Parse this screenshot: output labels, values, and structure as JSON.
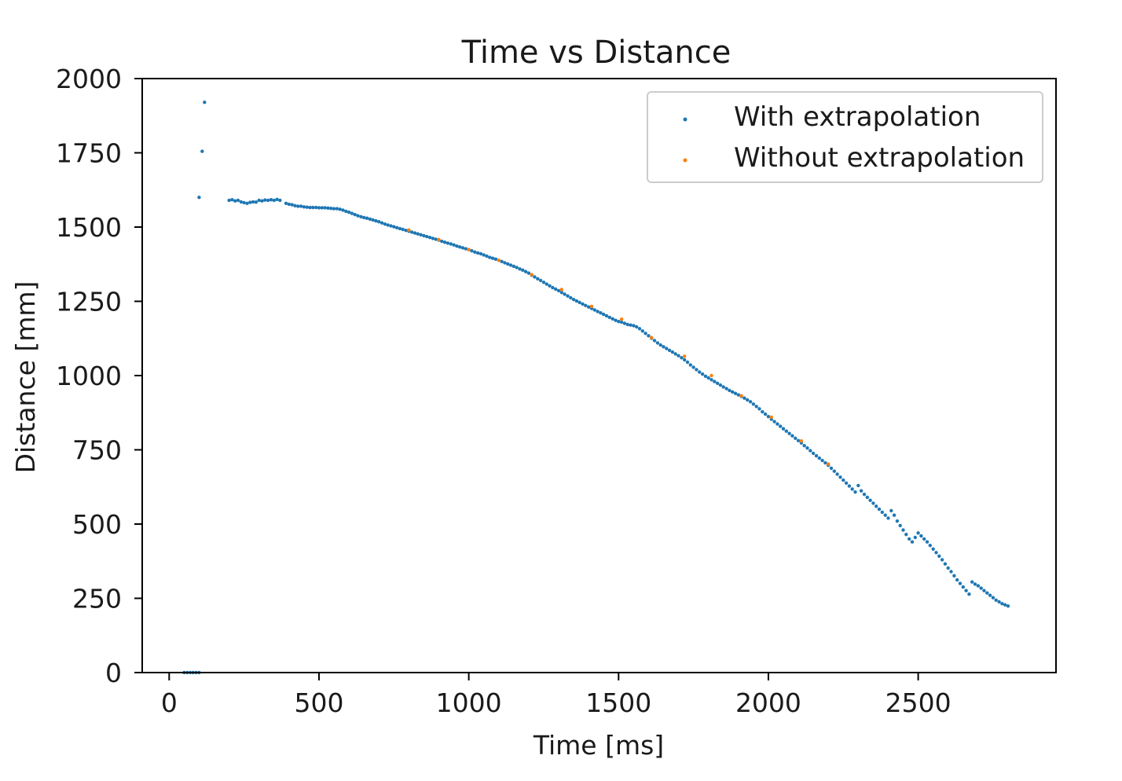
{
  "chart_data": {
    "type": "scatter",
    "title": "Time vs Distance",
    "xlabel": "Time [ms]",
    "ylabel": "Distance [mm]",
    "xlim": [
      -90,
      2960
    ],
    "ylim": [
      0,
      2000
    ],
    "xticks": [
      0,
      500,
      1000,
      1500,
      2000,
      2500
    ],
    "yticks": [
      0,
      250,
      500,
      750,
      1000,
      1250,
      1500,
      1750,
      2000
    ],
    "grid": false,
    "legend_position": "top-right",
    "colors": {
      "with": "#1f77b4",
      "without": "#ff7f0e"
    },
    "series": [
      {
        "name": "With extrapolation",
        "color": "#1f77b4",
        "points": [
          [
            50,
            0
          ],
          [
            60,
            0
          ],
          [
            70,
            0
          ],
          [
            80,
            0
          ],
          [
            90,
            0
          ],
          [
            100,
            0
          ],
          [
            100,
            1600
          ],
          [
            110,
            1755
          ],
          [
            118,
            1920
          ],
          [
            200,
            1590
          ],
          [
            210,
            1592
          ],
          [
            220,
            1588
          ],
          [
            230,
            1590
          ],
          [
            240,
            1585
          ],
          [
            250,
            1582
          ],
          [
            260,
            1580
          ],
          [
            270,
            1583
          ],
          [
            280,
            1585
          ],
          [
            290,
            1584
          ],
          [
            300,
            1590
          ],
          [
            310,
            1588
          ],
          [
            320,
            1591
          ],
          [
            330,
            1590
          ],
          [
            340,
            1592
          ],
          [
            350,
            1590
          ],
          [
            360,
            1593
          ],
          [
            370,
            1590
          ],
          [
            390,
            1580
          ],
          [
            400,
            1577
          ],
          [
            410,
            1575
          ],
          [
            420,
            1572
          ],
          [
            430,
            1570
          ],
          [
            440,
            1570
          ],
          [
            450,
            1568
          ],
          [
            460,
            1567
          ],
          [
            470,
            1566
          ],
          [
            480,
            1566
          ],
          [
            490,
            1566
          ],
          [
            500,
            1565
          ],
          [
            510,
            1565
          ],
          [
            520,
            1565
          ],
          [
            530,
            1564
          ],
          [
            540,
            1563
          ],
          [
            550,
            1562
          ],
          [
            560,
            1562
          ],
          [
            570,
            1560
          ],
          [
            580,
            1557
          ],
          [
            590,
            1553
          ],
          [
            600,
            1550
          ],
          [
            610,
            1546
          ],
          [
            620,
            1542
          ],
          [
            630,
            1538
          ],
          [
            640,
            1535
          ],
          [
            650,
            1532
          ],
          [
            660,
            1530
          ],
          [
            670,
            1527
          ],
          [
            680,
            1524
          ],
          [
            690,
            1521
          ],
          [
            700,
            1518
          ],
          [
            710,
            1514
          ],
          [
            720,
            1510
          ],
          [
            730,
            1507
          ],
          [
            740,
            1504
          ],
          [
            750,
            1501
          ],
          [
            760,
            1498
          ],
          [
            770,
            1495
          ],
          [
            780,
            1492
          ],
          [
            790,
            1489
          ],
          [
            800,
            1486
          ],
          [
            810,
            1483
          ],
          [
            820,
            1480
          ],
          [
            830,
            1477
          ],
          [
            840,
            1474
          ],
          [
            850,
            1471
          ],
          [
            860,
            1468
          ],
          [
            870,
            1465
          ],
          [
            880,
            1462
          ],
          [
            890,
            1459
          ],
          [
            900,
            1456
          ],
          [
            910,
            1452
          ],
          [
            920,
            1449
          ],
          [
            930,
            1446
          ],
          [
            940,
            1443
          ],
          [
            950,
            1440
          ],
          [
            960,
            1436
          ],
          [
            970,
            1433
          ],
          [
            980,
            1430
          ],
          [
            990,
            1427
          ],
          [
            1000,
            1424
          ],
          [
            1010,
            1420
          ],
          [
            1020,
            1416
          ],
          [
            1030,
            1413
          ],
          [
            1040,
            1410
          ],
          [
            1050,
            1406
          ],
          [
            1060,
            1402
          ],
          [
            1070,
            1398
          ],
          [
            1080,
            1395
          ],
          [
            1090,
            1392
          ],
          [
            1100,
            1388
          ],
          [
            1110,
            1384
          ],
          [
            1120,
            1380
          ],
          [
            1130,
            1376
          ],
          [
            1140,
            1372
          ],
          [
            1150,
            1368
          ],
          [
            1160,
            1364
          ],
          [
            1170,
            1359
          ],
          [
            1180,
            1355
          ],
          [
            1190,
            1350
          ],
          [
            1200,
            1345
          ],
          [
            1210,
            1338
          ],
          [
            1220,
            1332
          ],
          [
            1230,
            1326
          ],
          [
            1240,
            1320
          ],
          [
            1250,
            1314
          ],
          [
            1260,
            1308
          ],
          [
            1270,
            1302
          ],
          [
            1280,
            1296
          ],
          [
            1290,
            1291
          ],
          [
            1300,
            1286
          ],
          [
            1310,
            1280
          ],
          [
            1320,
            1274
          ],
          [
            1330,
            1268
          ],
          [
            1340,
            1262
          ],
          [
            1350,
            1256
          ],
          [
            1360,
            1251
          ],
          [
            1370,
            1246
          ],
          [
            1380,
            1241
          ],
          [
            1390,
            1236
          ],
          [
            1400,
            1231
          ],
          [
            1410,
            1226
          ],
          [
            1420,
            1221
          ],
          [
            1430,
            1216
          ],
          [
            1440,
            1211
          ],
          [
            1450,
            1206
          ],
          [
            1460,
            1201
          ],
          [
            1470,
            1196
          ],
          [
            1480,
            1191
          ],
          [
            1490,
            1186
          ],
          [
            1500,
            1182
          ],
          [
            1510,
            1180
          ],
          [
            1520,
            1176
          ],
          [
            1530,
            1172
          ],
          [
            1540,
            1170
          ],
          [
            1550,
            1168
          ],
          [
            1560,
            1164
          ],
          [
            1570,
            1158
          ],
          [
            1580,
            1150
          ],
          [
            1590,
            1142
          ],
          [
            1600,
            1134
          ],
          [
            1610,
            1126
          ],
          [
            1620,
            1118
          ],
          [
            1630,
            1110
          ],
          [
            1640,
            1103
          ],
          [
            1650,
            1097
          ],
          [
            1660,
            1091
          ],
          [
            1670,
            1085
          ],
          [
            1680,
            1079
          ],
          [
            1690,
            1073
          ],
          [
            1700,
            1067
          ],
          [
            1710,
            1060
          ],
          [
            1720,
            1053
          ],
          [
            1730,
            1045
          ],
          [
            1740,
            1036
          ],
          [
            1750,
            1028
          ],
          [
            1760,
            1020
          ],
          [
            1770,
            1012
          ],
          [
            1780,
            1005
          ],
          [
            1790,
            998
          ],
          [
            1800,
            992
          ],
          [
            1810,
            986
          ],
          [
            1820,
            980
          ],
          [
            1830,
            974
          ],
          [
            1840,
            968
          ],
          [
            1850,
            962
          ],
          [
            1860,
            956
          ],
          [
            1870,
            950
          ],
          [
            1880,
            945
          ],
          [
            1890,
            940
          ],
          [
            1900,
            935
          ],
          [
            1910,
            930
          ],
          [
            1920,
            924
          ],
          [
            1930,
            918
          ],
          [
            1940,
            912
          ],
          [
            1950,
            904
          ],
          [
            1960,
            896
          ],
          [
            1970,
            888
          ],
          [
            1980,
            878
          ],
          [
            1990,
            870
          ],
          [
            2000,
            862
          ],
          [
            2010,
            853
          ],
          [
            2020,
            845
          ],
          [
            2030,
            837
          ],
          [
            2040,
            829
          ],
          [
            2050,
            821
          ],
          [
            2060,
            813
          ],
          [
            2070,
            805
          ],
          [
            2080,
            797
          ],
          [
            2090,
            789
          ],
          [
            2100,
            781
          ],
          [
            2110,
            773
          ],
          [
            2120,
            764
          ],
          [
            2130,
            756
          ],
          [
            2140,
            747
          ],
          [
            2150,
            738
          ],
          [
            2160,
            730
          ],
          [
            2170,
            722
          ],
          [
            2180,
            714
          ],
          [
            2190,
            706
          ],
          [
            2200,
            698
          ],
          [
            2210,
            688
          ],
          [
            2220,
            678
          ],
          [
            2230,
            668
          ],
          [
            2240,
            658
          ],
          [
            2250,
            648
          ],
          [
            2260,
            638
          ],
          [
            2270,
            628
          ],
          [
            2280,
            618
          ],
          [
            2290,
            608
          ],
          [
            2300,
            630
          ],
          [
            2310,
            612
          ],
          [
            2320,
            600
          ],
          [
            2330,
            590
          ],
          [
            2340,
            580
          ],
          [
            2350,
            570
          ],
          [
            2360,
            560
          ],
          [
            2370,
            550
          ],
          [
            2380,
            540
          ],
          [
            2390,
            530
          ],
          [
            2400,
            520
          ],
          [
            2410,
            545
          ],
          [
            2420,
            530
          ],
          [
            2430,
            510
          ],
          [
            2440,
            495
          ],
          [
            2450,
            480
          ],
          [
            2460,
            465
          ],
          [
            2470,
            450
          ],
          [
            2480,
            440
          ],
          [
            2490,
            455
          ],
          [
            2500,
            470
          ],
          [
            2510,
            460
          ],
          [
            2520,
            450
          ],
          [
            2530,
            440
          ],
          [
            2540,
            428
          ],
          [
            2550,
            416
          ],
          [
            2560,
            404
          ],
          [
            2570,
            392
          ],
          [
            2580,
            380
          ],
          [
            2590,
            366
          ],
          [
            2600,
            352
          ],
          [
            2610,
            340
          ],
          [
            2620,
            326
          ],
          [
            2630,
            312
          ],
          [
            2640,
            300
          ],
          [
            2650,
            288
          ],
          [
            2660,
            276
          ],
          [
            2670,
            264
          ],
          [
            2680,
            305
          ],
          [
            2690,
            298
          ],
          [
            2700,
            292
          ],
          [
            2710,
            284
          ],
          [
            2720,
            276
          ],
          [
            2730,
            268
          ],
          [
            2740,
            260
          ],
          [
            2750,
            252
          ],
          [
            2760,
            244
          ],
          [
            2770,
            238
          ],
          [
            2780,
            232
          ],
          [
            2790,
            228
          ],
          [
            2800,
            224
          ]
        ]
      },
      {
        "name": "Without extrapolation",
        "color": "#ff7f0e",
        "points": [
          [
            800,
            1490
          ],
          [
            900,
            1458
          ],
          [
            1000,
            1424
          ],
          [
            1100,
            1388
          ],
          [
            1210,
            1340
          ],
          [
            1310,
            1290
          ],
          [
            1410,
            1233
          ],
          [
            1510,
            1190
          ],
          [
            1610,
            1128
          ],
          [
            1720,
            1065
          ],
          [
            1810,
            1000
          ],
          [
            1910,
            932
          ],
          [
            2010,
            860
          ],
          [
            2110,
            780
          ],
          [
            2200,
            702
          ]
        ]
      }
    ]
  }
}
